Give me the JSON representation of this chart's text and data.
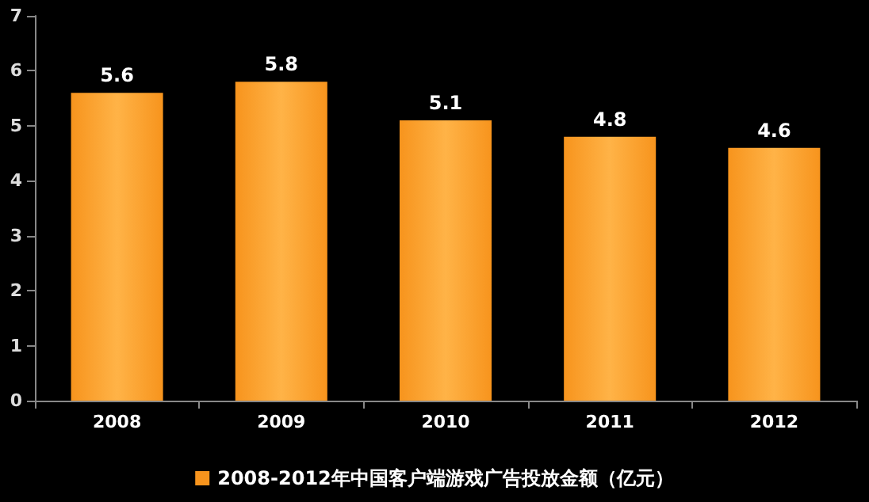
{
  "chart_data": {
    "type": "bar",
    "categories": [
      "2008",
      "2009",
      "2010",
      "2011",
      "2012"
    ],
    "series": [
      {
        "name": "2008-2012年中国客户端游戏广告投放金额（亿元）",
        "color": "#f7941d",
        "values": [
          5.6,
          5.8,
          5.1,
          4.8,
          4.6
        ]
      }
    ],
    "ylim": [
      0,
      7
    ],
    "yticks": [
      0,
      1,
      2,
      3,
      4,
      5,
      6,
      7
    ],
    "grid": false,
    "legend": "bottom",
    "data_labels": true
  }
}
